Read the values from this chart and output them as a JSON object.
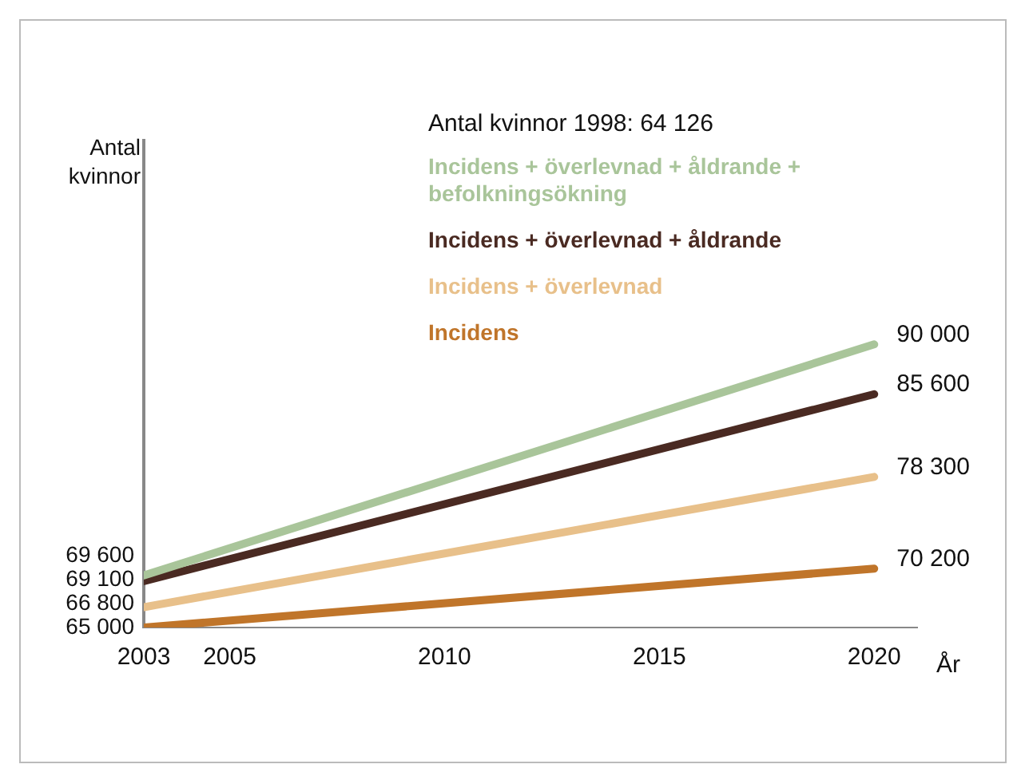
{
  "chart_data": {
    "type": "line",
    "title": "Antal kvinnor 1998: 64 126",
    "ylabel": "Antal kvinnor",
    "xlabel": "År",
    "x": [
      2003,
      2020
    ],
    "xlim": [
      2003,
      2021
    ],
    "xticks": [
      2003,
      2005,
      2010,
      2015,
      2020
    ],
    "ylim": [
      65000,
      108000
    ],
    "tick_labels": "x",
    "grid": false,
    "legend": "top",
    "marker": "none",
    "line_style": "solid",
    "series": [
      {
        "name": "Incidens + överlevnad + åldrande + befolkningsökning",
        "color": "#a9c59a",
        "values": [
          69600,
          90000
        ],
        "value_labels": [
          "69 600",
          "90 000"
        ]
      },
      {
        "name": "Incidens + överlevnad + åldrande",
        "color": "#4a2a22",
        "values": [
          69100,
          85600
        ],
        "value_labels": [
          "69 100",
          "85 600"
        ]
      },
      {
        "name": "Incidens + överlevnad",
        "color": "#e8c08a",
        "values": [
          66800,
          78300
        ],
        "value_labels": [
          "66 800",
          "78 300"
        ]
      },
      {
        "name": "Incidens",
        "color": "#c0752a",
        "values": [
          65000,
          70200
        ],
        "value_labels": [
          "65 000",
          "70 200"
        ]
      }
    ]
  }
}
